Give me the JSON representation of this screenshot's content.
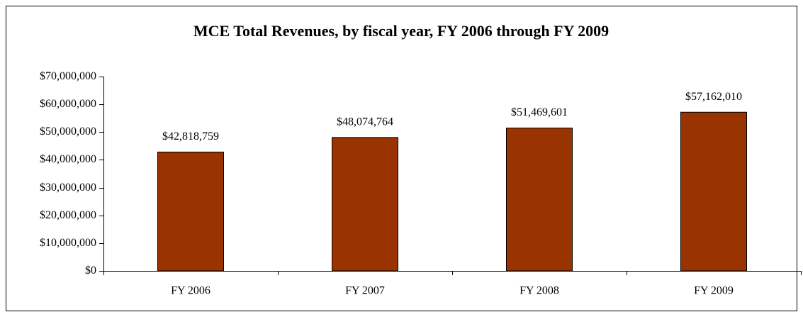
{
  "chart_data": {
    "type": "bar",
    "title": "MCE Total Revenues, by fiscal year, FY 2006 through FY 2009",
    "categories": [
      "FY 2006",
      "FY 2007",
      "FY 2008",
      "FY 2009"
    ],
    "values": [
      42818759,
      48074764,
      51469601,
      57162010
    ],
    "value_labels": [
      "$42,818,759",
      "$48,074,764",
      "$51,469,601",
      "$57,162,010"
    ],
    "color": "#993300",
    "ylim": [
      0,
      70000000
    ],
    "yticks": [
      {
        "value": 0,
        "label": "$0"
      },
      {
        "value": 10000000,
        "label": "$10,000,000"
      },
      {
        "value": 20000000,
        "label": "$20,000,000"
      },
      {
        "value": 30000000,
        "label": "$30,000,000"
      },
      {
        "value": 40000000,
        "label": "$40,000,000"
      },
      {
        "value": 50000000,
        "label": "$50,000,000"
      },
      {
        "value": 60000000,
        "label": "$60,000,000"
      },
      {
        "value": 70000000,
        "label": "$70,000,000"
      }
    ],
    "grid": false
  }
}
